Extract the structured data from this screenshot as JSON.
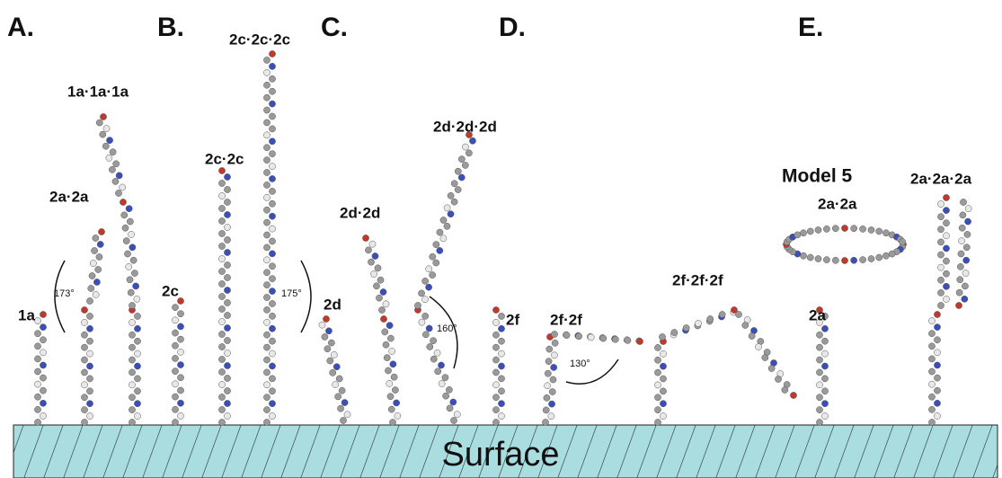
{
  "panels": [
    "A.",
    "B.",
    "C.",
    "D.",
    "E."
  ],
  "molecules": [
    "1a",
    "2a·2a",
    "1a·1a·1a",
    "2c",
    "2c·2c",
    "2c·2c·2c",
    "2d",
    "2d·2d",
    "2d·2d·2d",
    "2f",
    "2f·2f",
    "2f·2f·2f",
    "2a",
    "2a·2a",
    "2a·2a·2a"
  ],
  "model": "Model 5",
  "angles": [
    "173°",
    "175°",
    "160°",
    "130°"
  ],
  "surface": "Surface"
}
